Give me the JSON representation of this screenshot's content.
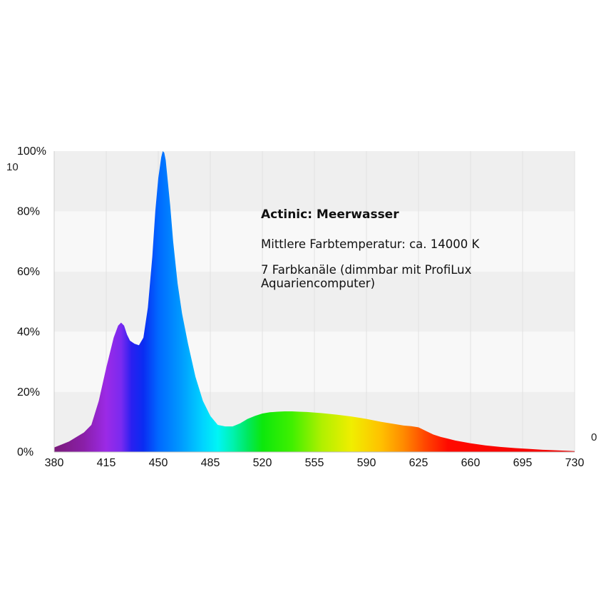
{
  "chart_data": {
    "type": "area",
    "title": "",
    "xlabel": "",
    "ylabel": "",
    "xlim": [
      380,
      730
    ],
    "ylim": [
      0,
      100
    ],
    "y_tick_labels": [
      "0%",
      "20%",
      "40%",
      "60%",
      "80%",
      "100%"
    ],
    "x_tick_labels": [
      "380",
      "415",
      "450",
      "485",
      "520",
      "555",
      "590",
      "625",
      "660",
      "695",
      "730"
    ],
    "grid": "alternating horizontal bands",
    "fill": "visible spectrum gradient",
    "series": [
      {
        "x": [
          380,
          385,
          390,
          395,
          400,
          405,
          410,
          415,
          420,
          423,
          425,
          427,
          429,
          431,
          434,
          437,
          440,
          443,
          446,
          448,
          450,
          452,
          453,
          454,
          455,
          456,
          458,
          460,
          463,
          466,
          470,
          475,
          480,
          485,
          490,
          495,
          500,
          505,
          510,
          515,
          520,
          525,
          530,
          535,
          540,
          545,
          550,
          560,
          570,
          580,
          590,
          600,
          610,
          615,
          620,
          625,
          630,
          635,
          640,
          645,
          650,
          660,
          670,
          680,
          690,
          700,
          710,
          720,
          730
        ],
        "values": [
          1.5,
          2.5,
          3.5,
          5,
          6.5,
          9,
          17,
          28,
          38,
          42,
          43,
          42,
          39,
          37,
          36,
          35.5,
          38,
          48,
          65,
          80,
          91,
          98,
          100,
          99.5,
          97,
          92,
          82,
          70,
          56,
          46,
          36,
          25,
          17,
          12,
          9,
          8.5,
          8.5,
          9.5,
          11,
          12,
          12.8,
          13.2,
          13.4,
          13.5,
          13.5,
          13.4,
          13.3,
          12.9,
          12.4,
          11.8,
          11,
          10,
          9.2,
          8.8,
          8.6,
          8.2,
          7,
          5.8,
          5,
          4.4,
          3.8,
          2.9,
          2.2,
          1.7,
          1.3,
          1,
          0.7,
          0.5,
          0.3
        ]
      }
    ],
    "gradient_stops": [
      {
        "nm": 380,
        "color": "#7a1b7a"
      },
      {
        "nm": 400,
        "color": "#8a1fa8"
      },
      {
        "nm": 415,
        "color": "#9b2ae6"
      },
      {
        "nm": 425,
        "color": "#7a2af0"
      },
      {
        "nm": 432,
        "color": "#2a20f0"
      },
      {
        "nm": 440,
        "color": "#0a2cf2"
      },
      {
        "nm": 450,
        "color": "#0068ff"
      },
      {
        "nm": 465,
        "color": "#0099ff"
      },
      {
        "nm": 480,
        "color": "#00d4ff"
      },
      {
        "nm": 490,
        "color": "#00f5f5"
      },
      {
        "nm": 500,
        "color": "#00f2b0"
      },
      {
        "nm": 510,
        "color": "#00e860"
      },
      {
        "nm": 520,
        "color": "#0ce80c"
      },
      {
        "nm": 540,
        "color": "#40f000"
      },
      {
        "nm": 560,
        "color": "#b0f000"
      },
      {
        "nm": 580,
        "color": "#f0ee00"
      },
      {
        "nm": 600,
        "color": "#ffc000"
      },
      {
        "nm": 615,
        "color": "#ff8a00"
      },
      {
        "nm": 630,
        "color": "#ff4400"
      },
      {
        "nm": 645,
        "color": "#ff0a00"
      },
      {
        "nm": 730,
        "color": "#f20000"
      }
    ]
  },
  "annotation": {
    "title": "Actinic:  Meerwasser",
    "color_temp": "Mittlere Farbtemperatur: ca. 14000 K",
    "channels": "7 Farbkanäle (dimmbar mit ProfiLux Aquariencomputer)"
  },
  "stray_text": {
    "left_top": "10",
    "right_zero": "0"
  }
}
